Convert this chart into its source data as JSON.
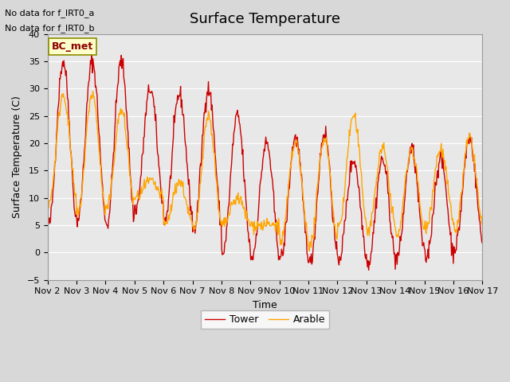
{
  "title": "Surface Temperature",
  "ylabel": "Surface Temperature (C)",
  "xlabel": "Time",
  "ylim": [
    -5,
    40
  ],
  "yticks": [
    -5,
    0,
    5,
    10,
    15,
    20,
    25,
    30,
    35,
    40
  ],
  "background_color": "#e8e8e8",
  "plot_bg_color": "#e8e8e8",
  "legend_labels": [
    "Tower",
    "Arable"
  ],
  "legend_colors": [
    "#cc0000",
    "#ffa500"
  ],
  "no_data_texts": [
    "No data for f_IRT0_a",
    "No data for f_IRT0_b"
  ],
  "bc_met_label": "BC_met",
  "xticklabels": [
    "Nov 2",
    "Nov 3",
    "Nov 4",
    "Nov 5",
    "Nov 6",
    "Nov 7",
    "Nov 8",
    "Nov 9",
    "Nov 10",
    "Nov 11",
    "Nov 12",
    "Nov 13",
    "Nov 14",
    "Nov 15",
    "Nov 16",
    "Nov 17"
  ],
  "tower_peaks": [
    35,
    35,
    35,
    30,
    29,
    30,
    25,
    20,
    21,
    22,
    17,
    17,
    19,
    17,
    21
  ],
  "arable_peaks": [
    29,
    29,
    26,
    13,
    13,
    25,
    10,
    5,
    20,
    21,
    25,
    19,
    19,
    19,
    21
  ],
  "tower_mins": [
    5,
    6,
    5,
    8,
    6,
    4,
    0,
    -1,
    -1,
    -2,
    -1,
    -2,
    -1,
    -1,
    1
  ],
  "arable_mins": [
    9,
    7,
    8,
    10,
    5,
    4,
    5,
    5,
    2,
    1,
    5,
    4,
    3,
    5,
    4
  ]
}
